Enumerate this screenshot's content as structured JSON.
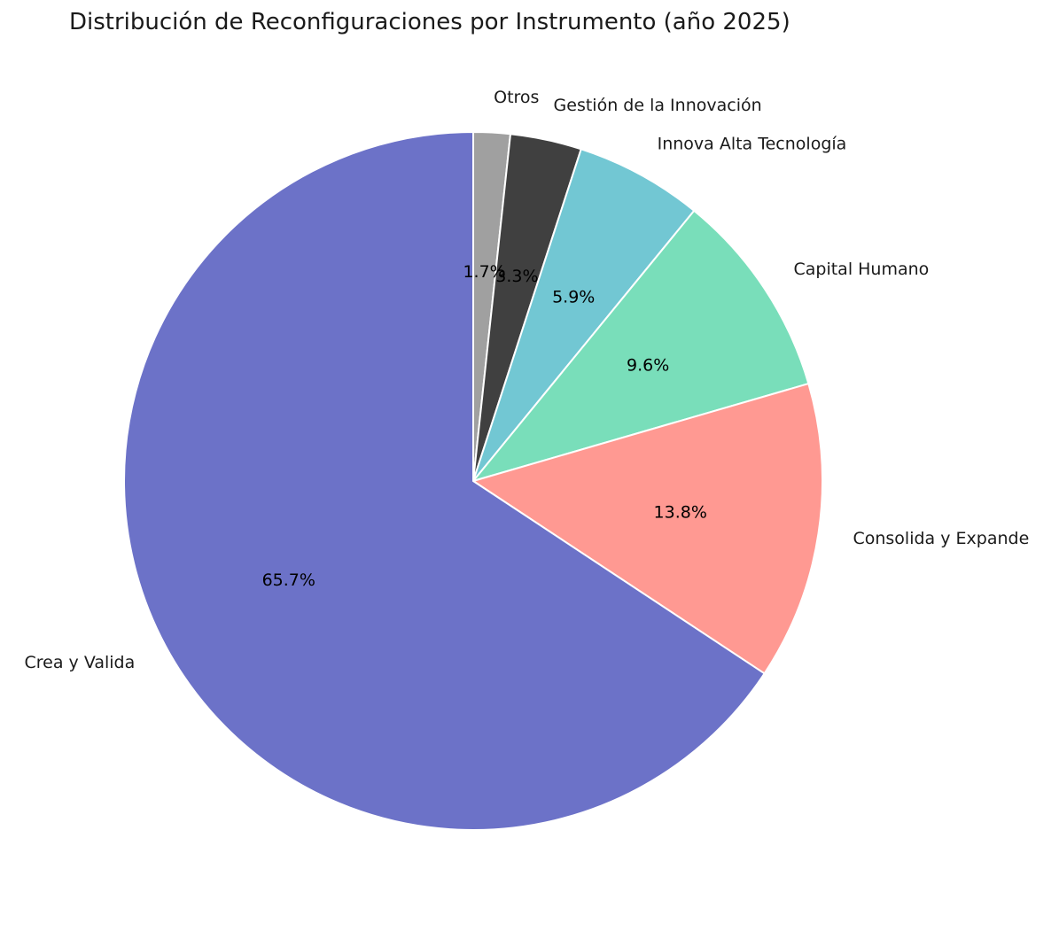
{
  "chart_data": {
    "type": "pie",
    "title": "Distribución de Reconfiguraciones por Instrumento (año 2025)",
    "start_angle_deg": 90,
    "direction": "clockwise",
    "legend": "none",
    "slices": [
      {
        "label": "Otros",
        "value": 1.7,
        "pct_label": "1.7%",
        "color": "#a0a0a0"
      },
      {
        "label": "Gestión de la Innovación",
        "value": 3.3,
        "pct_label": "3.3%",
        "color": "#404040"
      },
      {
        "label": "Innova Alta Tecnología",
        "value": 5.9,
        "pct_label": "5.9%",
        "color": "#72c7d3"
      },
      {
        "label": "Capital Humano",
        "value": 9.6,
        "pct_label": "9.6%",
        "color": "#79deba"
      },
      {
        "label": "Consolida y Expande",
        "value": 13.8,
        "pct_label": "13.8%",
        "color": "#ff9992"
      },
      {
        "label": "Crea y Valida",
        "value": 65.7,
        "pct_label": "65.7%",
        "color": "#6c72c8"
      }
    ]
  }
}
